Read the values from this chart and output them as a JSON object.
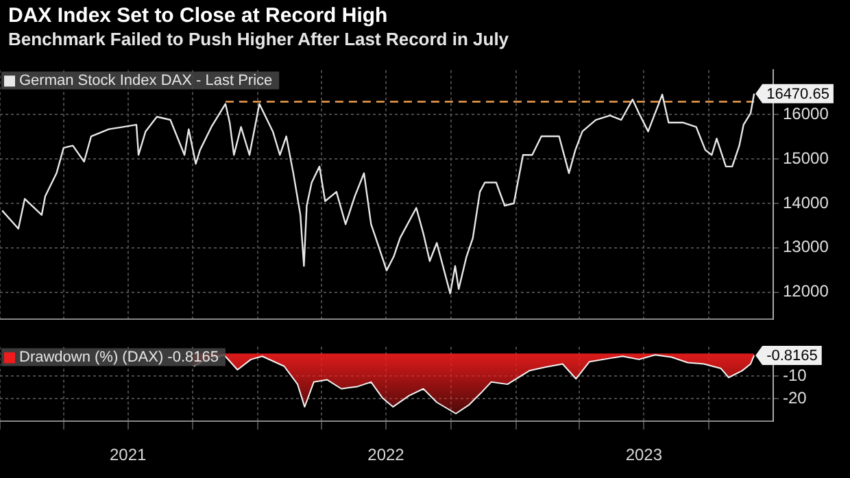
{
  "chart_data": [
    {
      "type": "line",
      "title": "DAX Index Set to Close at Record High",
      "subtitle": "Benchmark Failed to Push Higher After Last Record in July",
      "tick_labels": "y",
      "grid": true,
      "legend": "top left",
      "marker": "none",
      "xlim": [
        "2021-01-01",
        "2023-12-31"
      ],
      "xticks": [
        {
          "value": "2021-01-01",
          "label": null
        },
        {
          "value": "2021-04-01",
          "label": null
        },
        {
          "value": "2021-07-01",
          "label": null
        },
        {
          "value": "2021-10-01",
          "label": null
        },
        {
          "value": "2022-01-01",
          "label": null
        },
        {
          "value": "2022-04-01",
          "label": null
        },
        {
          "value": "2022-07-01",
          "label": null
        },
        {
          "value": "2022-10-01",
          "label": null
        },
        {
          "value": "2023-01-01",
          "label": null
        },
        {
          "value": "2023-04-01",
          "label": null
        },
        {
          "value": "2023-07-01",
          "label": null
        },
        {
          "value": "2023-10-01",
          "label": null
        }
      ],
      "ylim": [
        11400,
        17000
      ],
      "yticks": [
        12000,
        13000,
        14000,
        15000,
        16000
      ],
      "series": [
        {
          "name": "German Stock Index DAX - Last Price",
          "color": "#e8e8e8",
          "x": [
            "2021-01-04",
            "2021-01-27",
            "2021-02-05",
            "2021-03-01",
            "2021-03-06",
            "2021-03-22",
            "2021-04-01",
            "2021-04-14",
            "2021-04-30",
            "2021-05-10",
            "2021-06-04",
            "2021-06-24",
            "2021-07-13",
            "2021-07-16",
            "2021-07-26",
            "2021-08-11",
            "2021-08-30",
            "2021-09-19",
            "2021-09-25",
            "2021-10-05",
            "2021-10-11",
            "2021-10-27",
            "2021-11-16",
            "2021-11-22",
            "2021-11-28",
            "2021-12-08",
            "2021-12-20",
            "2022-01-03",
            "2022-01-22",
            "2022-02-01",
            "2022-02-10",
            "2022-02-20",
            "2022-03-02",
            "2022-03-07",
            "2022-03-11",
            "2022-03-18",
            "2022-03-29",
            "2022-04-06",
            "2022-04-22",
            "2022-05-05",
            "2022-05-18",
            "2022-05-31",
            "2022-06-10",
            "2022-06-19",
            "2022-07-02",
            "2022-07-12",
            "2022-07-21",
            "2022-08-13",
            "2022-08-23",
            "2022-09-01",
            "2022-09-11",
            "2022-09-30",
            "2022-10-07",
            "2022-10-12",
            "2022-10-23",
            "2022-11-01",
            "2022-11-11",
            "2022-11-18",
            "2022-12-04",
            "2022-12-16",
            "2022-12-29",
            "2023-01-11",
            "2023-01-24",
            "2023-02-06",
            "2023-03-03",
            "2023-03-17",
            "2023-03-26",
            "2023-04-05",
            "2023-04-24",
            "2023-05-14",
            "2023-05-30",
            "2023-06-15",
            "2023-06-24",
            "2023-07-07",
            "2023-07-27",
            "2023-08-05",
            "2023-08-25",
            "2023-09-13",
            "2023-09-26",
            "2023-10-05",
            "2023-10-12",
            "2023-10-25",
            "2023-11-03",
            "2023-11-13",
            "2023-11-19",
            "2023-11-29",
            "2023-12-04"
          ],
          "values": [
            13840,
            13430,
            14100,
            13740,
            14160,
            14680,
            15250,
            15300,
            14940,
            15510,
            15670,
            15720,
            15770,
            15090,
            15620,
            15950,
            15880,
            15090,
            15670,
            14890,
            15200,
            15720,
            16240,
            15820,
            15090,
            15720,
            15090,
            16240,
            15620,
            15090,
            15510,
            14680,
            13740,
            12590,
            13950,
            14470,
            14830,
            14050,
            14260,
            13530,
            14160,
            14680,
            13530,
            13110,
            12490,
            12800,
            13220,
            13900,
            13320,
            12700,
            13110,
            11970,
            12590,
            12070,
            12800,
            13220,
            14260,
            14470,
            14470,
            13950,
            14000,
            15090,
            15090,
            15510,
            15510,
            14680,
            15200,
            15620,
            15880,
            15980,
            15880,
            16340,
            16030,
            15620,
            16450,
            15820,
            15820,
            15720,
            15200,
            15090,
            15460,
            14830,
            14830,
            15300,
            15770,
            16030,
            16470.65
          ],
          "value_labels": [
            null,
            null,
            null,
            null,
            null,
            null,
            null,
            null,
            null,
            null,
            null,
            null,
            null,
            null,
            null,
            null,
            null,
            null,
            null,
            null,
            null,
            null,
            null,
            null,
            null,
            null,
            null,
            null,
            null,
            null,
            null,
            null,
            null,
            null,
            null,
            null,
            null,
            null,
            null,
            null,
            null,
            null,
            null,
            null,
            null,
            null,
            null,
            null,
            null,
            null,
            null,
            null,
            null,
            null,
            null,
            null,
            null,
            null,
            null,
            null,
            null,
            null,
            null,
            null,
            null,
            null,
            null,
            null,
            null,
            null,
            null,
            null,
            null,
            null,
            null,
            null,
            null,
            null,
            null,
            null,
            null,
            null,
            null,
            null,
            null,
            null,
            "16470.65"
          ]
        },
        {
          "color": "#f0a050",
          "line_style": "dashed",
          "x": [
            "2021-11-16",
            "2023-12-04"
          ],
          "values": [
            16290,
            16290
          ]
        }
      ]
    },
    {
      "type": "area",
      "grid": true,
      "legend": "top left",
      "marker": "none",
      "xlim": [
        "2021-01-01",
        "2023-12-31"
      ],
      "xticks": [
        {
          "value": "2021-01-01",
          "label": null
        },
        {
          "value": "2021-04-01",
          "label": null
        },
        {
          "value": "2021-07-01",
          "label": "2021"
        },
        {
          "value": "2021-10-01",
          "label": null
        },
        {
          "value": "2022-01-01",
          "label": null
        },
        {
          "value": "2022-04-01",
          "label": null
        },
        {
          "value": "2022-07-01",
          "label": "2022"
        },
        {
          "value": "2022-10-01",
          "label": null
        },
        {
          "value": "2023-01-01",
          "label": null
        },
        {
          "value": "2023-04-01",
          "label": null
        },
        {
          "value": "2023-07-01",
          "label": "2023"
        },
        {
          "value": "2023-10-01",
          "label": null
        }
      ],
      "ylim": [
        -30,
        3
      ],
      "yticks": [
        -10,
        -20
      ],
      "series": [
        {
          "name": "Drawdown (%) (DAX) -0.8165",
          "color": "#ee1c1c",
          "x": [
            "2021-10-02",
            "2021-10-14",
            "2021-11-14",
            "2021-12-03",
            "2021-12-22",
            "2022-01-07",
            "2022-02-07",
            "2022-02-26",
            "2022-03-08",
            "2022-03-21",
            "2022-04-09",
            "2022-04-29",
            "2022-05-22",
            "2022-06-10",
            "2022-06-26",
            "2022-07-11",
            "2022-08-03",
            "2022-08-23",
            "2022-09-11",
            "2022-10-08",
            "2022-10-27",
            "2022-11-12",
            "2022-11-27",
            "2022-12-20",
            "2023-01-20",
            "2023-02-12",
            "2023-03-08",
            "2023-03-27",
            "2023-04-15",
            "2023-05-16",
            "2023-06-01",
            "2023-06-24",
            "2023-07-17",
            "2023-08-09",
            "2023-09-01",
            "2023-09-24",
            "2023-10-18",
            "2023-10-29",
            "2023-11-17",
            "2023-11-29",
            "2023-12-04"
          ],
          "values": [
            -5.6,
            -3.6,
            -0.6,
            -7.2,
            -2.6,
            -1.2,
            -5.6,
            -13.6,
            -23.6,
            -12.6,
            -11.6,
            -15.6,
            -14.6,
            -12.6,
            -19.6,
            -23.6,
            -18.6,
            -15.6,
            -21.6,
            -26.6,
            -22.6,
            -17.6,
            -12.6,
            -13.6,
            -7.6,
            -6,
            -4.6,
            -11.2,
            -3.6,
            -2,
            -1.2,
            -2.6,
            -0.6,
            -1.6,
            -4,
            -4.6,
            -6.6,
            -10.6,
            -7.6,
            -4.6,
            -0.8165
          ],
          "value_labels": [
            null,
            null,
            null,
            null,
            null,
            null,
            null,
            null,
            null,
            null,
            null,
            null,
            null,
            null,
            null,
            null,
            null,
            null,
            null,
            null,
            null,
            null,
            null,
            null,
            null,
            null,
            null,
            null,
            null,
            null,
            null,
            null,
            null,
            null,
            null,
            null,
            null,
            null,
            null,
            null,
            "-0.8165"
          ]
        }
      ]
    }
  ]
}
